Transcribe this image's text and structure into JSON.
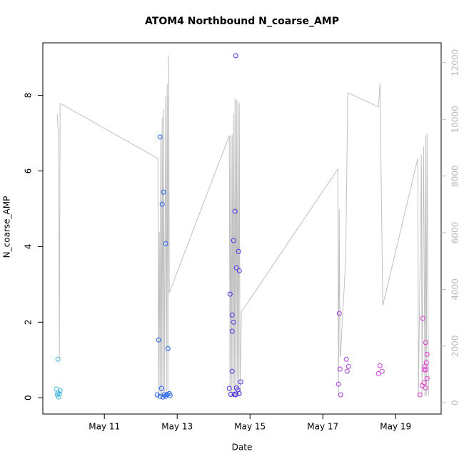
{
  "chart_data": {
    "type": "scatter",
    "title": "ATOM4 Northbound N_coarse_AMP",
    "xlabel": "Date",
    "ylabel": "N_coarse_AMP",
    "xlim": [
      9.31,
      20.25
    ],
    "xticks": [
      {
        "value": 11,
        "label": "May 11"
      },
      {
        "value": 13,
        "label": "May 13"
      },
      {
        "value": 15,
        "label": "May 15"
      },
      {
        "value": 17,
        "label": "May 17"
      },
      {
        "value": 19,
        "label": "May 19"
      }
    ],
    "ylim": [
      -0.43,
      9.39
    ],
    "yticks": [
      0,
      2,
      4,
      6,
      8
    ],
    "y2lim": [
      -400,
      12700
    ],
    "y2ticks": [
      0,
      2000,
      4000,
      6000,
      8000,
      10000,
      12000
    ],
    "series": [
      {
        "type": "scatter",
        "x": [
          9.725,
          9.686,
          9.784,
          9.725,
          9.706,
          9.745,
          9.765,
          12.529,
          12.627,
          12.588,
          12.686,
          12.49,
          12.745,
          12.569,
          12.451,
          12.529,
          12.608,
          12.647,
          12.725,
          12.784,
          12.804,
          12.686,
          14.608,
          14.588,
          14.549,
          14.686,
          14.627,
          14.706,
          14.451,
          14.51,
          14.549,
          14.51,
          14.51,
          14.745,
          14.431,
          14.627,
          14.667,
          14.471,
          14.569,
          14.706,
          14.608,
          17.451,
          17.647,
          17.706,
          17.471,
          17.667,
          17.431,
          17.49,
          18.569,
          18.627,
          18.529,
          19.745,
          19.824,
          19.863,
          19.843,
          19.804,
          19.784,
          19.824,
          19.863,
          19.725,
          19.784,
          19.824,
          19.667
        ],
        "values": [
          1.02,
          0.23,
          0.19,
          0.13,
          0.08,
          0.02,
          0.1,
          6.9,
          5.44,
          5.12,
          4.08,
          1.53,
          1.3,
          0.25,
          0.08,
          0.04,
          0.02,
          0.08,
          0.09,
          0.11,
          0.06,
          0.04,
          9.05,
          4.93,
          4.16,
          3.87,
          3.44,
          3.36,
          2.74,
          2.19,
          2.0,
          1.76,
          0.7,
          0.42,
          0.25,
          0.26,
          0.21,
          0.09,
          0.09,
          0.11,
          0.08,
          2.23,
          1.02,
          0.83,
          0.76,
          0.7,
          0.36,
          0.08,
          0.85,
          0.7,
          0.64,
          2.1,
          1.46,
          1.15,
          0.93,
          0.83,
          0.74,
          0.74,
          0.51,
          0.32,
          0.4,
          0.26,
          0.08
        ],
        "colors": [
          "#3cb4dc",
          "#3cb4dc",
          "#3cb4dc",
          "#3cb4dc",
          "#3cb4dc",
          "#3cb4dc",
          "#3cb4dc",
          "#2060f0",
          "#2060f0",
          "#2060f0",
          "#2060f0",
          "#2060f0",
          "#2060f0",
          "#2060f0",
          "#2060f0",
          "#2060f0",
          "#2060f0",
          "#2060f0",
          "#2060f0",
          "#2060f0",
          "#2060f0",
          "#2060f0",
          "#4a30ea",
          "#4a30ea",
          "#4a30ea",
          "#4a30ea",
          "#4a30ea",
          "#4a30ea",
          "#4a30ea",
          "#4a30ea",
          "#4a30ea",
          "#4a30ea",
          "#4a30ea",
          "#4a30ea",
          "#4a30ea",
          "#4a30ea",
          "#4a30ea",
          "#4a30ea",
          "#4a30ea",
          "#4a30ea",
          "#4a30ea",
          "#a83ee0",
          "#a83ee0",
          "#a83ee0",
          "#a83ee0",
          "#a83ee0",
          "#a83ee0",
          "#a83ee0",
          "#c83cd8",
          "#c83cd8",
          "#c83cd8",
          "#e03cd0",
          "#e03cd0",
          "#e03cd0",
          "#e03cd0",
          "#e03cd0",
          "#e03cd0",
          "#e03cd0",
          "#e03cd0",
          "#e03cd0",
          "#e03cd0",
          "#e03cd0",
          "#e03cd0"
        ]
      },
      {
        "type": "line",
        "axis": "y2",
        "color": "#c0c0c0",
        "x": [
          9.706,
          9.745,
          9.765,
          9.784,
          12.471,
          12.49,
          12.51,
          12.529,
          12.549,
          12.569,
          12.588,
          12.608,
          12.627,
          12.647,
          12.686,
          12.706,
          12.725,
          12.745,
          12.765,
          12.784,
          14.431,
          14.451,
          14.471,
          14.49,
          14.51,
          14.529,
          14.549,
          14.569,
          14.588,
          14.608,
          14.627,
          14.647,
          14.667,
          14.686,
          14.706,
          14.725,
          14.765,
          17.412,
          17.431,
          17.451,
          17.471,
          17.49,
          17.627,
          17.686,
          18.529,
          18.569,
          18.647,
          19.608,
          19.627,
          19.706,
          19.725,
          19.765,
          19.804,
          19.824,
          19.843,
          19.863,
          19.902
        ],
        "values": [
          10185,
          9177,
          1613,
          10563,
          8622,
          227,
          6025,
          227,
          9429,
          227,
          10059,
          227,
          10361,
          227,
          10815,
          227,
          11244,
          227,
          12252,
          3882,
          9429,
          227,
          9429,
          227,
          9479,
          227,
          10185,
          227,
          10739,
          227,
          10689,
          227,
          10639,
          227,
          10563,
          227,
          3202,
          8244,
          227,
          6832,
          1613,
          1739,
          5017,
          10941,
          10437,
          11269,
          3429,
          8622,
          227,
          8748,
          227,
          9050,
          227,
          9429,
          227,
          9504,
          227
        ]
      }
    ]
  }
}
